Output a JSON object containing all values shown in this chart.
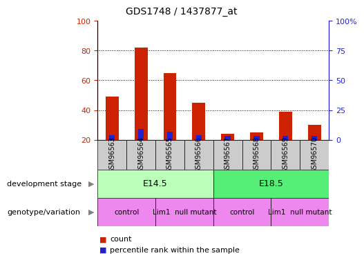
{
  "title": "GDS1748 / 1437877_at",
  "samples": [
    "GSM96563",
    "GSM96564",
    "GSM96565",
    "GSM96566",
    "GSM96567",
    "GSM96568",
    "GSM96569",
    "GSM96570"
  ],
  "count_values": [
    49,
    82,
    65,
    45,
    24,
    25,
    39,
    30
  ],
  "percentile_values": [
    4,
    9,
    7,
    4,
    3,
    3,
    3,
    3
  ],
  "ylim_left": [
    20,
    100
  ],
  "ylim_right": [
    0,
    100
  ],
  "yticks_left": [
    20,
    40,
    60,
    80,
    100
  ],
  "yticks_right": [
    0,
    25,
    50,
    75,
    100
  ],
  "ytick_labels_right": [
    "0",
    "25",
    "50",
    "75",
    "100%"
  ],
  "count_color": "#cc2200",
  "percentile_color": "#2222cc",
  "dev_stage_labels": [
    "E14.5",
    "E18.5"
  ],
  "dev_stage_colors": [
    "#bbffbb",
    "#55ee77"
  ],
  "genotype_labels": [
    "control",
    "Lim1  null mutant",
    "control",
    "Lim1  null mutant"
  ],
  "genotype_color": "#ee88ee",
  "tick_color_left": "#cc2200",
  "tick_color_right": "#2222cc",
  "sample_bg": "#cccccc"
}
